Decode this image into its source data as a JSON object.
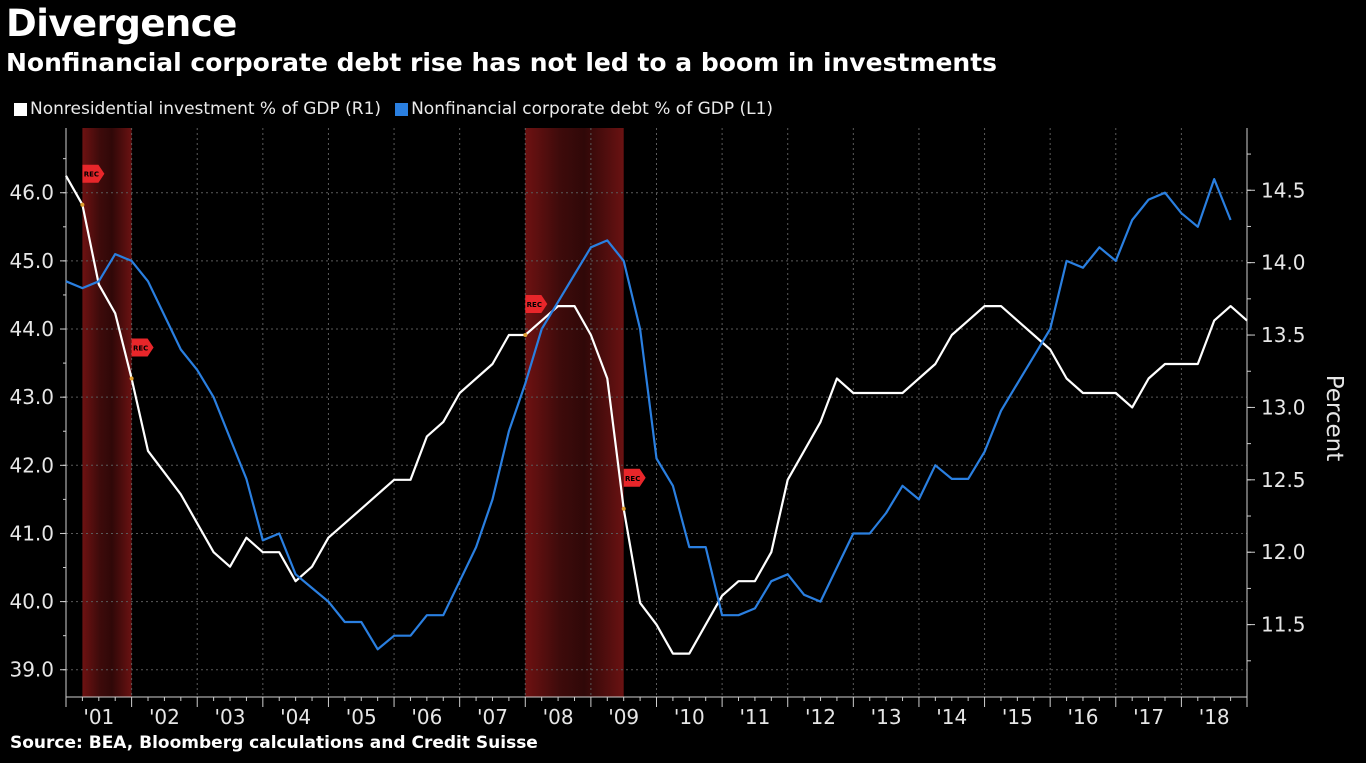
{
  "header": {
    "title": "Divergence",
    "subtitle": "Nonfinancial corporate debt rise has not led to a boom in investments"
  },
  "legend": {
    "items": [
      {
        "label": "Nonresidential investment % of GDP (R1)",
        "color": "#ffffff"
      },
      {
        "label": "Nonfinancial corporate debt % of GDP (L1)",
        "color": "#2a7fe0"
      }
    ]
  },
  "source": "Source: BEA, Bloomberg calculations and Credit Suisse",
  "chart_data": {
    "type": "line",
    "title": "Divergence",
    "subtitle": "Nonfinancial corporate debt rise has not led to a boom in investments",
    "xlabel": "",
    "x_ticks": [
      "'01",
      "'02",
      "'03",
      "'04",
      "'05",
      "'06",
      "'07",
      "'08",
      "'09",
      "'10",
      "'11",
      "'12",
      "'13",
      "'14",
      "'15",
      "'16",
      "'17",
      "'18"
    ],
    "x_range": [
      2001.0,
      2019.0
    ],
    "left_axis": {
      "ticks": [
        "39.0",
        "40.0",
        "41.0",
        "42.0",
        "43.0",
        "44.0",
        "45.0",
        "46.0"
      ],
      "range": [
        38.6,
        46.95
      ]
    },
    "right_axis": {
      "label": "Percent",
      "ticks": [
        "11.5",
        "12.0",
        "12.5",
        "13.0",
        "13.5",
        "14.0",
        "14.5"
      ],
      "range": [
        11.0,
        14.93
      ]
    },
    "recessions": [
      {
        "start": 2001.25,
        "end": 2002.0,
        "label_start": "REC",
        "label_end": "REC"
      },
      {
        "start": 2008.0,
        "end": 2009.5,
        "label_start": "REC",
        "label_end": "REC"
      }
    ],
    "series": [
      {
        "name": "Nonresidential investment % of GDP (R1)",
        "color": "#ffffff",
        "axis": "right",
        "x_start": 2001.0,
        "x_step": 0.25,
        "values": [
          14.6,
          14.4,
          13.85,
          13.65,
          13.2,
          12.7,
          12.55,
          12.4,
          12.2,
          12.0,
          11.9,
          12.1,
          12.0,
          12.0,
          11.8,
          11.9,
          12.1,
          12.2,
          12.3,
          12.4,
          12.5,
          12.5,
          12.8,
          12.9,
          13.1,
          13.2,
          13.3,
          13.5,
          13.5,
          13.6,
          13.7,
          13.7,
          13.5,
          13.2,
          12.3,
          11.65,
          11.5,
          11.3,
          11.3,
          11.5,
          11.7,
          11.8,
          11.8,
          12.0,
          12.5,
          12.7,
          12.9,
          13.2,
          13.1,
          13.1,
          13.1,
          13.1,
          13.2,
          13.3,
          13.5,
          13.6,
          13.7,
          13.7,
          13.6,
          13.5,
          13.4,
          13.2,
          13.1,
          13.1,
          13.1,
          13.0,
          13.2,
          13.3,
          13.3,
          13.3,
          13.6,
          13.7,
          13.6
        ]
      },
      {
        "name": "Nonfinancial corporate debt % of GDP (L1)",
        "color": "#2a7fe0",
        "axis": "left",
        "x_start": 2001.0,
        "x_step": 0.25,
        "values": [
          44.7,
          44.6,
          44.7,
          45.1,
          45.0,
          44.7,
          44.2,
          43.7,
          43.4,
          43.0,
          42.4,
          41.8,
          40.9,
          41.0,
          40.4,
          40.2,
          40.0,
          39.7,
          39.7,
          39.3,
          39.5,
          39.5,
          39.8,
          39.8,
          40.3,
          40.8,
          41.5,
          42.5,
          43.2,
          44.0,
          44.4,
          44.8,
          45.2,
          45.3,
          45.0,
          44.0,
          42.1,
          41.7,
          40.8,
          40.8,
          39.8,
          39.8,
          39.9,
          40.3,
          40.4,
          40.1,
          40.0,
          40.5,
          41.0,
          41.0,
          41.3,
          41.7,
          41.5,
          42.0,
          41.8,
          41.8,
          42.2,
          42.8,
          43.2,
          43.6,
          44.0,
          45.0,
          44.9,
          45.2,
          45.0,
          45.6,
          45.9,
          46.0,
          45.7,
          45.5,
          46.2,
          45.6
        ]
      }
    ]
  }
}
